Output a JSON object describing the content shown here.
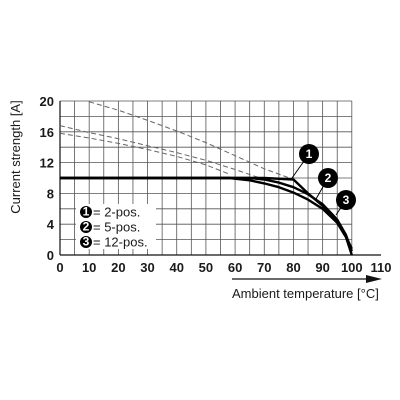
{
  "chart_data": {
    "type": "line",
    "title": "",
    "xlabel": "Ambient temperature [°C]",
    "ylabel": "Current strength [A]",
    "xlim": [
      0,
      110
    ],
    "ylim": [
      0,
      20
    ],
    "xticks": [
      "0",
      "10",
      "20",
      "30",
      "40",
      "50",
      "60",
      "70",
      "80",
      "90",
      "100",
      "110"
    ],
    "yticks": [
      "0",
      "4",
      "8",
      "12",
      "16",
      "20"
    ],
    "grid": true,
    "legend_position": "bottom-left",
    "series": [
      {
        "name": "2-pos.",
        "marker": "1",
        "points": [
          [
            0,
            10
          ],
          [
            70,
            10
          ],
          [
            80,
            9.8
          ],
          [
            85,
            8.0
          ],
          [
            90,
            6.4
          ],
          [
            95,
            4.3
          ],
          [
            98,
            2.4
          ],
          [
            100,
            0.8
          ]
        ],
        "extension_points": [
          [
            10,
            19.9
          ],
          [
            20,
            18.8
          ],
          [
            30,
            17.5
          ],
          [
            40,
            16.1
          ],
          [
            50,
            14.6
          ],
          [
            60,
            12.9
          ],
          [
            70,
            11.2
          ],
          [
            80,
            9.8
          ]
        ]
      },
      {
        "name": "5-pos.",
        "marker": "2",
        "points": [
          [
            0,
            10
          ],
          [
            65,
            10
          ],
          [
            70,
            9.8
          ],
          [
            75,
            9.4
          ],
          [
            80,
            8.8
          ],
          [
            85,
            7.9
          ],
          [
            90,
            6.6
          ],
          [
            95,
            4.6
          ],
          [
            98,
            2.6
          ],
          [
            100,
            0.5
          ]
        ],
        "extension_points": [
          [
            0,
            16.8
          ],
          [
            10,
            15.9
          ],
          [
            20,
            15.1
          ],
          [
            30,
            14.2
          ],
          [
            40,
            13.3
          ],
          [
            50,
            12.3
          ],
          [
            60,
            11.1
          ],
          [
            70,
            9.8
          ]
        ]
      },
      {
        "name": "12-pos.",
        "marker": "3",
        "points": [
          [
            0,
            10
          ],
          [
            58,
            10
          ],
          [
            65,
            9.7
          ],
          [
            70,
            9.3
          ],
          [
            75,
            8.8
          ],
          [
            80,
            8.1
          ],
          [
            85,
            7.2
          ],
          [
            90,
            6.0
          ],
          [
            95,
            4.2
          ],
          [
            98,
            2.3
          ],
          [
            100,
            0
          ]
        ],
        "extension_points": [
          [
            0,
            15.8
          ],
          [
            10,
            15.2
          ],
          [
            20,
            14.5
          ],
          [
            30,
            13.7
          ],
          [
            40,
            12.8
          ],
          [
            50,
            11.7
          ],
          [
            58,
            10.5
          ]
        ]
      }
    ]
  }
}
